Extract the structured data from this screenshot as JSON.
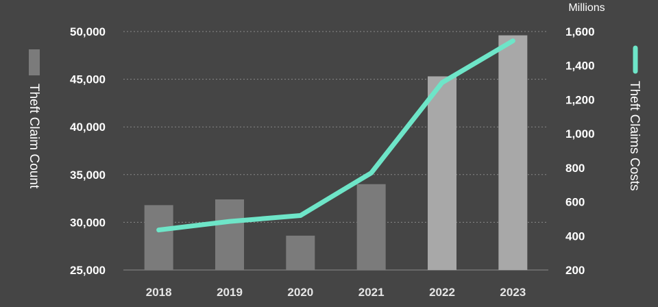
{
  "chart_data": {
    "type": "bar",
    "categories": [
      "2018",
      "2019",
      "2020",
      "2021",
      "2022",
      "2023"
    ],
    "series": [
      {
        "name": "Theft Claim Count",
        "type": "bar",
        "axis": "left",
        "values": [
          31800,
          32400,
          28600,
          34000,
          45300,
          49600
        ],
        "colors": [
          "#7b7b7b",
          "#7b7b7b",
          "#7b7b7b",
          "#7b7b7b",
          "#a8a8a8",
          "#a8a8a8"
        ]
      },
      {
        "name": "Theft Claims Costs",
        "type": "line",
        "axis": "right",
        "values": [
          435,
          485,
          520,
          770,
          1300,
          1545
        ],
        "color": "#6ee5c8"
      }
    ],
    "y_left": {
      "label": "Theft Claim Count",
      "range": [
        25000,
        50000
      ],
      "ticks": [
        "25,000",
        "30,000",
        "35,000",
        "40,000",
        "45,000",
        "50,000"
      ]
    },
    "y_right": {
      "label": "Theft Claims Costs",
      "unit": "Millions",
      "range": [
        200,
        1600
      ],
      "ticks": [
        "200",
        "400",
        "600",
        "800",
        "1,000",
        "1,200",
        "1,400",
        "1,600"
      ]
    },
    "grid": true,
    "legend": "axis-titles"
  }
}
